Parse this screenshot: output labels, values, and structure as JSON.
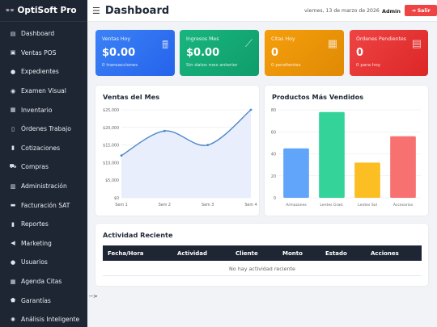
{
  "brand": {
    "logo": "👓",
    "name": "OptiSoft Pro"
  },
  "sidebar": {
    "items": [
      {
        "label": "Dashboard",
        "icon": "dashboard-icon",
        "glyph": "▤"
      },
      {
        "label": "Ventas POS",
        "icon": "cash-register-icon",
        "glyph": "▣"
      },
      {
        "label": "Expedientes",
        "icon": "users-icon",
        "glyph": "●"
      },
      {
        "label": "Examen Visual",
        "icon": "eye-icon",
        "glyph": "◉"
      },
      {
        "label": "Inventario",
        "icon": "boxes-icon",
        "glyph": "▦"
      },
      {
        "label": "Órdenes Trabajo",
        "icon": "clipboard-icon",
        "glyph": "▯"
      },
      {
        "label": "Cotizaciones",
        "icon": "file-icon",
        "glyph": "▮"
      },
      {
        "label": "Compras",
        "icon": "cart-icon",
        "glyph": "⛟"
      },
      {
        "label": "Administración",
        "icon": "chart-icon",
        "glyph": "▥"
      },
      {
        "label": "Facturación SAT",
        "icon": "invoice-icon",
        "glyph": "▬"
      },
      {
        "label": "Reportes",
        "icon": "report-icon",
        "glyph": "▮"
      },
      {
        "label": "Marketing",
        "icon": "megaphone-icon",
        "glyph": "◀"
      },
      {
        "label": "Usuarios",
        "icon": "user-cog-icon",
        "glyph": "●"
      },
      {
        "label": "Agenda Citas",
        "icon": "calendar-icon",
        "glyph": "▦"
      },
      {
        "label": "Garantías",
        "icon": "shield-icon",
        "glyph": "⬟"
      },
      {
        "label": "Análisis Inteligente",
        "icon": "brain-icon",
        "glyph": "✺"
      }
    ]
  },
  "stray_text": "-->",
  "header": {
    "title": "Dashboard",
    "date": "viernes, 13 de marzo de 2026",
    "user": "Admin",
    "logout": "⇥ Salir"
  },
  "cards": [
    {
      "label": "Ventas Hoy",
      "value": "$0.00",
      "sub": "0 transacciones",
      "icon": "cash-register-icon",
      "glyph": "🖩"
    },
    {
      "label": "Ingresos Mes",
      "value": "$0.00",
      "sub": "Sin datos mes anterior",
      "icon": "trend-icon",
      "glyph": "⟋"
    },
    {
      "label": "Citas Hoy",
      "value": "0",
      "sub": "0 pendientes",
      "icon": "calendar-icon",
      "glyph": "▦"
    },
    {
      "label": "Órdenes Pendientes",
      "value": "0",
      "sub": "0 para hoy",
      "icon": "clipboard-icon",
      "glyph": "▤"
    }
  ],
  "sales_chart": {
    "title": "Ventas del Mes"
  },
  "products_chart": {
    "title": "Productos Más Vendidos"
  },
  "chart_data": [
    {
      "type": "line",
      "title": "Ventas del Mes",
      "categories": [
        "Sem 1",
        "Sem 2",
        "Sem 3",
        "Sem 4"
      ],
      "values": [
        12000,
        19000,
        15000,
        25000
      ],
      "yticks": [
        "$0",
        "$5,000",
        "$10,000",
        "$15,000",
        "$20,000",
        "$25,000"
      ],
      "ylim": [
        0,
        25000
      ],
      "color": "#4a86c8",
      "fill": "#e8eefb"
    },
    {
      "type": "bar",
      "title": "Productos Más Vendidos",
      "categories": [
        "Armazones",
        "Lentes Grad.",
        "Lentes Sol",
        "Accesorios"
      ],
      "values": [
        45,
        78,
        32,
        56
      ],
      "yticks": [
        "0",
        "20",
        "40",
        "60",
        "80"
      ],
      "ylim": [
        0,
        80
      ],
      "colors": [
        "#60a5fa",
        "#34d399",
        "#fbbf24",
        "#f87171"
      ]
    }
  ],
  "activity": {
    "title": "Actividad Reciente",
    "columns": [
      "Fecha/Hora",
      "Actividad",
      "Cliente",
      "Monto",
      "Estado",
      "Acciones"
    ],
    "empty": "No hay actividad reciente"
  }
}
